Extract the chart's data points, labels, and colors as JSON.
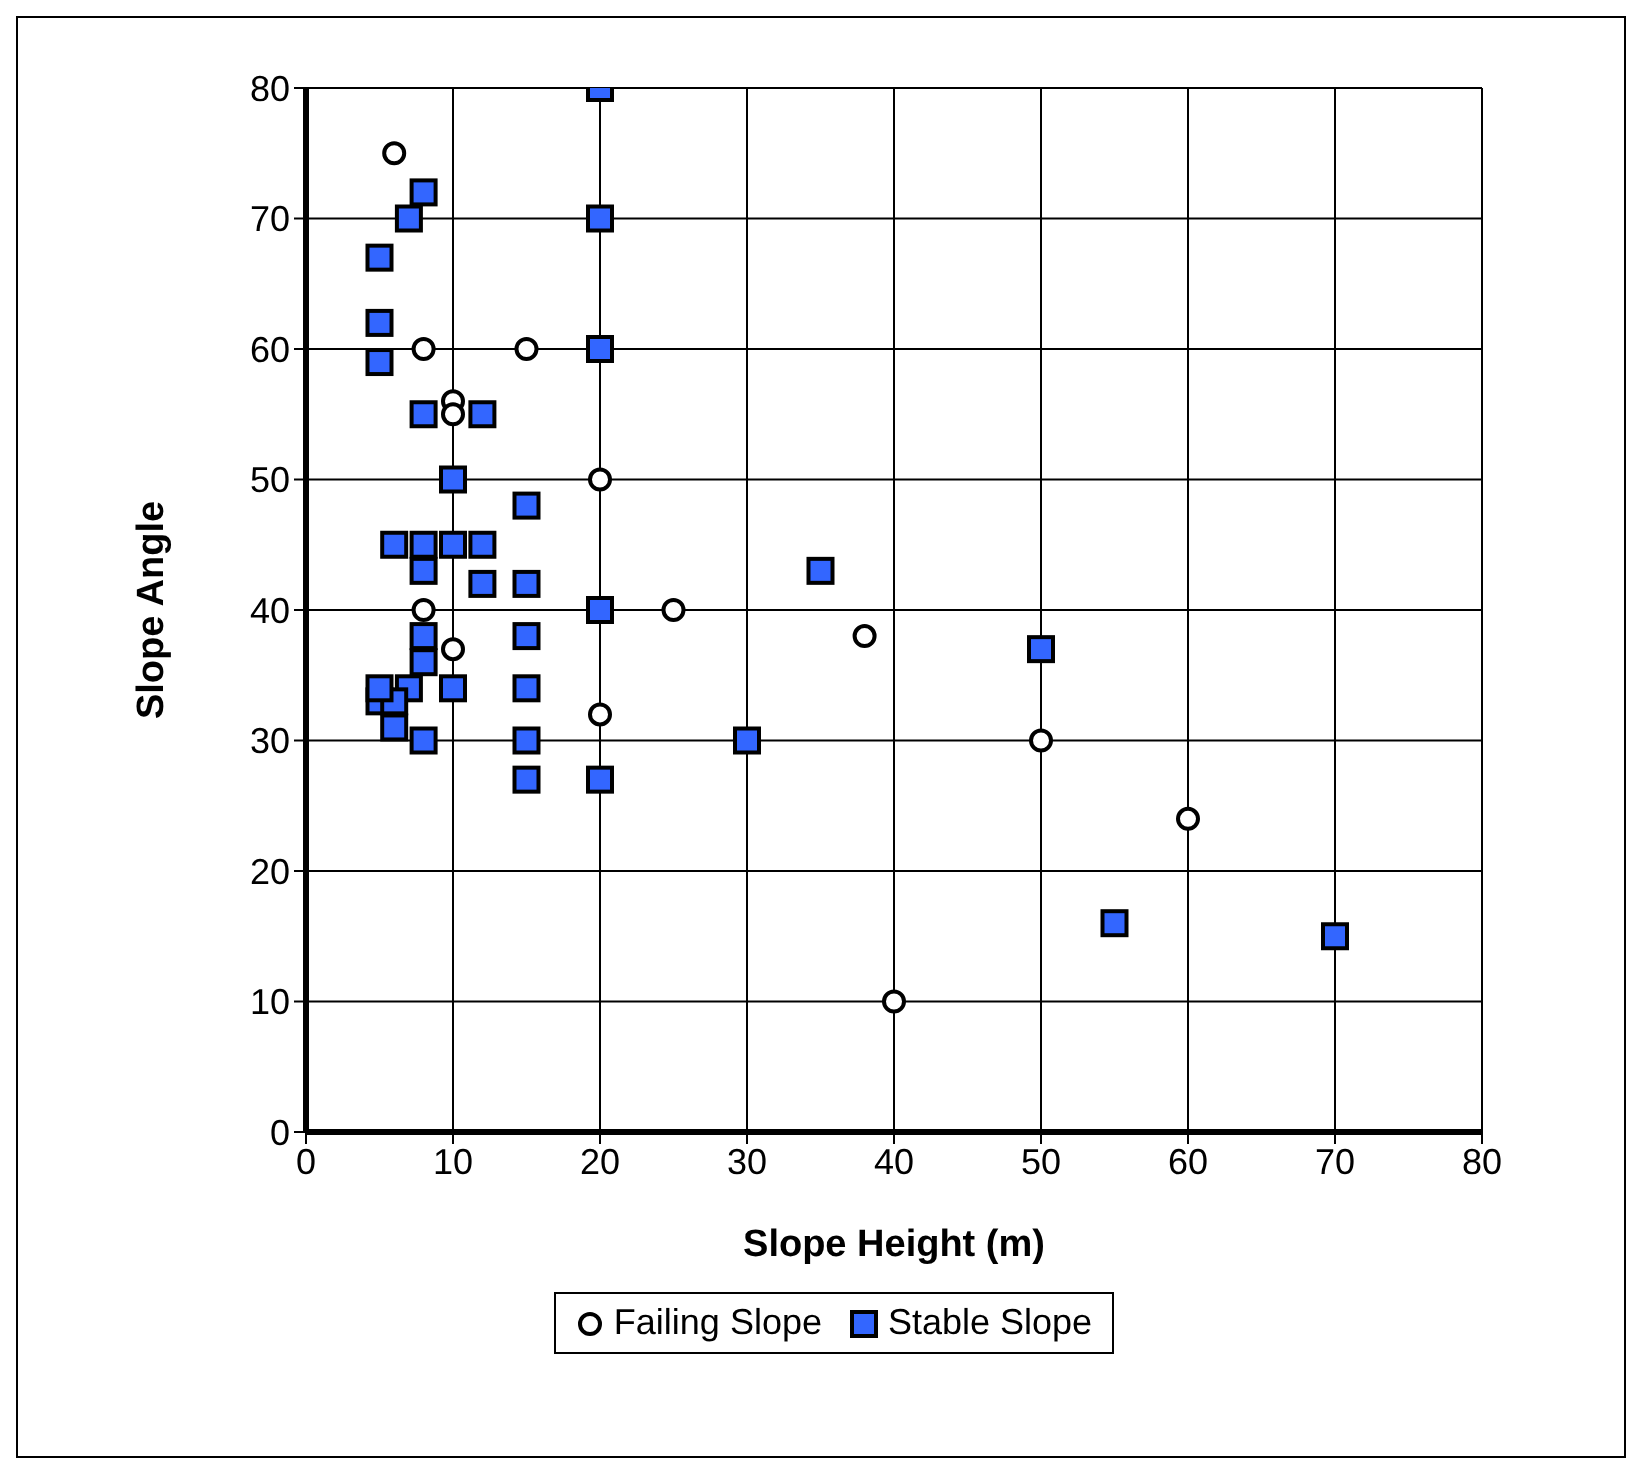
{
  "chart_data": {
    "type": "scatter",
    "xlabel": "Slope Height (m)",
    "ylabel": "Slope Angle",
    "xlim": [
      0,
      80
    ],
    "xticks": [
      0,
      10,
      20,
      30,
      40,
      50,
      60,
      70,
      80
    ],
    "ylim": [
      0,
      80
    ],
    "yticks": [
      0,
      10,
      20,
      30,
      40,
      50,
      60,
      70,
      80
    ],
    "grid": true,
    "legend": "bottom",
    "series": [
      {
        "name": "Failing Slope",
        "color": "#000000",
        "marker": "circle",
        "x": [
          6,
          8,
          15,
          10,
          10,
          20,
          8,
          25,
          38,
          10,
          20,
          50,
          60,
          40
        ],
        "values": [
          75,
          60,
          60,
          56,
          55,
          50,
          40,
          40,
          38,
          37,
          32,
          30,
          24,
          10
        ]
      },
      {
        "name": "Stable Slope",
        "color": "#3366ff",
        "marker": "square",
        "x": [
          20,
          8,
          7,
          20,
          5,
          5,
          20,
          5,
          8,
          12,
          10,
          15,
          6,
          8,
          10,
          12,
          8,
          35,
          12,
          15,
          20,
          15,
          8,
          50,
          8,
          7,
          10,
          15,
          5,
          6,
          6,
          8,
          15,
          30,
          15,
          20,
          55,
          70,
          5
        ],
        "values": [
          80,
          72,
          70,
          70,
          67,
          62,
          60,
          59,
          55,
          55,
          50,
          48,
          45,
          45,
          45,
          45,
          43,
          43,
          42,
          42,
          40,
          38,
          38,
          37,
          36,
          34,
          34,
          34,
          33,
          33,
          31,
          30,
          30,
          30,
          27,
          27,
          16,
          15,
          34
        ]
      }
    ]
  }
}
